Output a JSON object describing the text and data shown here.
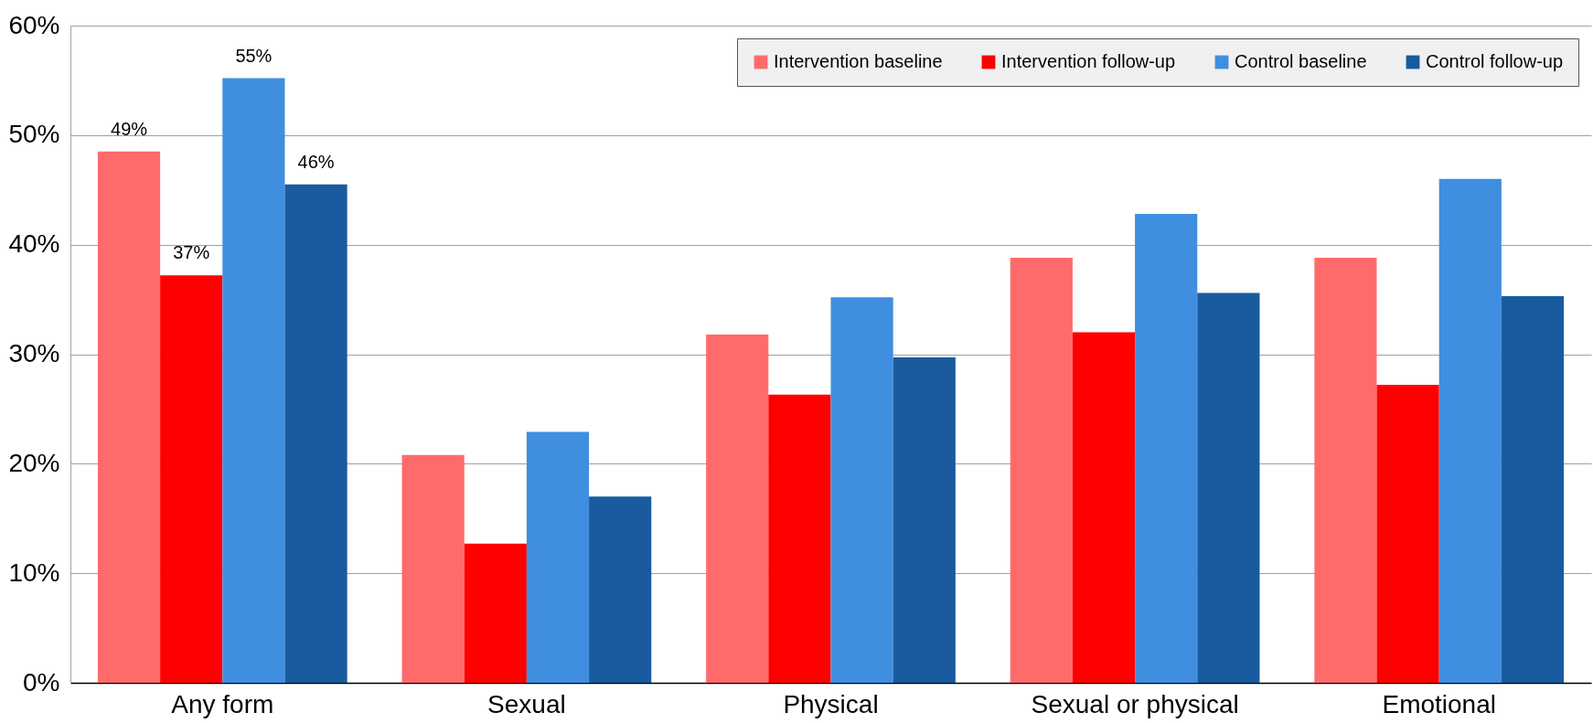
{
  "chart_data": {
    "type": "bar",
    "categories": [
      "Any form",
      "Sexual",
      "Physical",
      "Sexual or physical",
      "Emotional"
    ],
    "series": [
      {
        "name": "Intervention baseline",
        "color": "#ff6b6b",
        "values": [
          48.5,
          20.8,
          31.8,
          38.8,
          38.8
        ],
        "value_labels": [
          "49%",
          null,
          null,
          null,
          null
        ]
      },
      {
        "name": "Intervention follow-up",
        "color": "#ff0000",
        "values": [
          37.2,
          12.7,
          26.3,
          32.0,
          27.2
        ],
        "value_labels": [
          "37%",
          null,
          null,
          null,
          null
        ]
      },
      {
        "name": "Control baseline",
        "color": "#3f8ee0",
        "values": [
          55.2,
          22.9,
          35.2,
          42.8,
          46.0
        ],
        "value_labels": [
          "55%",
          null,
          null,
          null,
          null
        ]
      },
      {
        "name": "Control follow-up",
        "color": "#1a5a9e",
        "values": [
          45.5,
          17.0,
          29.7,
          35.6,
          35.3
        ],
        "value_labels": [
          "46%",
          null,
          null,
          null,
          null
        ]
      }
    ],
    "ylim": [
      0,
      60
    ],
    "yticks": [
      {
        "value": 0,
        "label": "0%"
      },
      {
        "value": 10,
        "label": "10%"
      },
      {
        "value": 20,
        "label": "20%"
      },
      {
        "value": 30,
        "label": "30%"
      },
      {
        "value": 40,
        "label": "40%"
      },
      {
        "value": 50,
        "label": "50%"
      },
      {
        "value": 60,
        "label": "60%"
      }
    ],
    "grid": "y",
    "legend": "top right"
  }
}
